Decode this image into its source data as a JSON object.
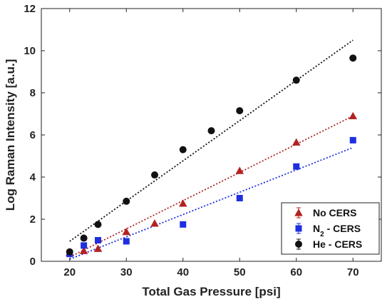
{
  "chart_data": {
    "type": "scatter",
    "xlabel": "Total Gas Pressure [psi]",
    "ylabel": "Log Raman Intensity [a.u.]",
    "xlim": [
      15,
      75
    ],
    "ylim": [
      0,
      12
    ],
    "x_ticks": [
      "20",
      "30",
      "40",
      "50",
      "60",
      "70"
    ],
    "y_ticks": [
      "0",
      "2",
      "4",
      "6",
      "8",
      "10",
      "12"
    ],
    "grid": false,
    "legend_position": "bottom-right",
    "series": [
      {
        "name": "No CERS",
        "color": "#b22222",
        "marker": "triangle",
        "points": [
          [
            20,
            0.4
          ],
          [
            22.5,
            0.5
          ],
          [
            25,
            0.6
          ],
          [
            30,
            1.4
          ],
          [
            35,
            1.8
          ],
          [
            40,
            2.75
          ],
          [
            50,
            4.3
          ],
          [
            60,
            5.65
          ],
          [
            70,
            6.9
          ]
        ],
        "fit": [
          [
            20,
            0.2
          ],
          [
            70,
            6.9
          ]
        ]
      },
      {
        "name": "N",
        "name_subscript": "2",
        "name_suffix": " - CERS",
        "color": "#1f2fe0",
        "marker": "square",
        "points": [
          [
            20,
            0.35
          ],
          [
            22.5,
            0.75
          ],
          [
            25,
            1.0
          ],
          [
            30,
            0.95
          ],
          [
            40,
            1.75
          ],
          [
            50,
            3.0
          ],
          [
            60,
            4.5
          ],
          [
            70,
            5.75
          ]
        ],
        "fit": [
          [
            20,
            0.1
          ],
          [
            70,
            5.4
          ]
        ]
      },
      {
        "name": "He - CERS",
        "color": "#111111",
        "marker": "circle",
        "points": [
          [
            20,
            0.45
          ],
          [
            22.5,
            1.1
          ],
          [
            25,
            1.75
          ],
          [
            30,
            2.85
          ],
          [
            35,
            4.1
          ],
          [
            40,
            5.3
          ],
          [
            45,
            6.2
          ],
          [
            50,
            7.15
          ],
          [
            60,
            8.6
          ],
          [
            70,
            9.65
          ]
        ],
        "fit": [
          [
            20,
            0.95
          ],
          [
            70,
            10.5
          ]
        ]
      }
    ]
  }
}
